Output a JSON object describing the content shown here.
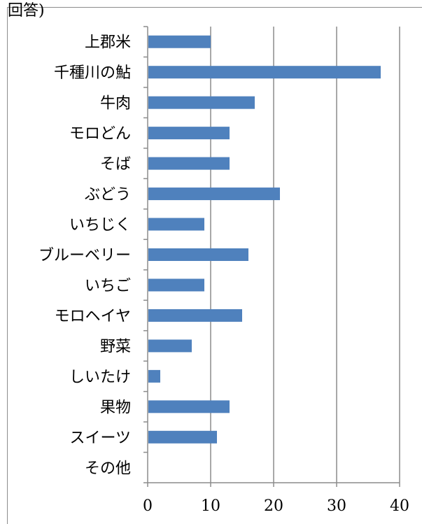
{
  "top_clipped_text": "回答)",
  "chart_data": {
    "type": "bar",
    "orientation": "horizontal",
    "categories": [
      "上郡米",
      "千種川の鮎",
      "牛肉",
      "モロどん",
      "そば",
      "ぶどう",
      "いちじく",
      "ブルーベリー",
      "いちご",
      "モロヘイヤ",
      "野菜",
      "しいたけ",
      "果物",
      "スイーツ",
      "その他"
    ],
    "values": [
      10,
      37,
      17,
      13,
      13,
      21,
      9,
      16,
      9,
      15,
      7,
      2,
      13,
      11,
      0
    ],
    "xlim": [
      0,
      40
    ],
    "xticks": [
      "0",
      "10",
      "20",
      "30",
      "40"
    ],
    "title": "",
    "xlabel": "",
    "ylabel": "",
    "bar_color": "#4f81bd",
    "gridlines": true,
    "legend": "none"
  }
}
